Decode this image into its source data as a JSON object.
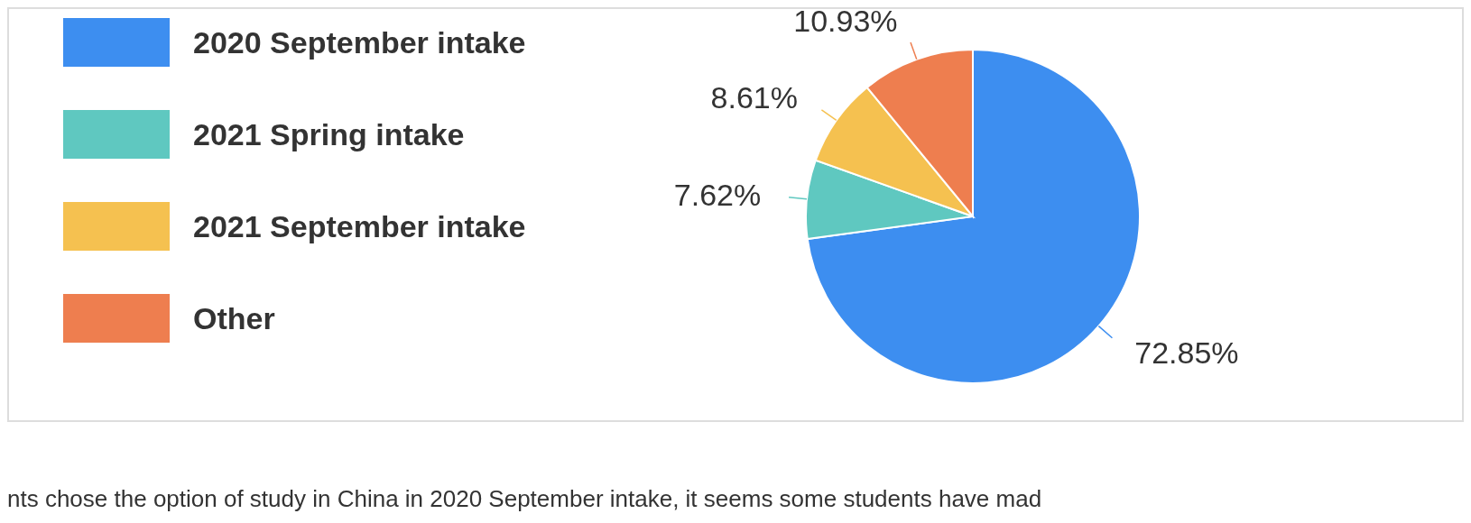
{
  "chart_data": {
    "type": "pie",
    "categories": [
      "2020 September intake",
      "2021 Spring intake",
      "2021 September intake",
      "Other"
    ],
    "values": [
      72.85,
      7.62,
      8.61,
      10.93
    ],
    "colors": [
      "#3d8ef0",
      "#5fc8c0",
      "#f5c150",
      "#ee7e4f"
    ],
    "value_labels": [
      "72.85%",
      "7.62%",
      "8.61%",
      "10.93%"
    ],
    "legend": "left",
    "annotations": [
      "nts chose the option of study in China in 2020 September intake, it seems some students have mad"
    ]
  }
}
